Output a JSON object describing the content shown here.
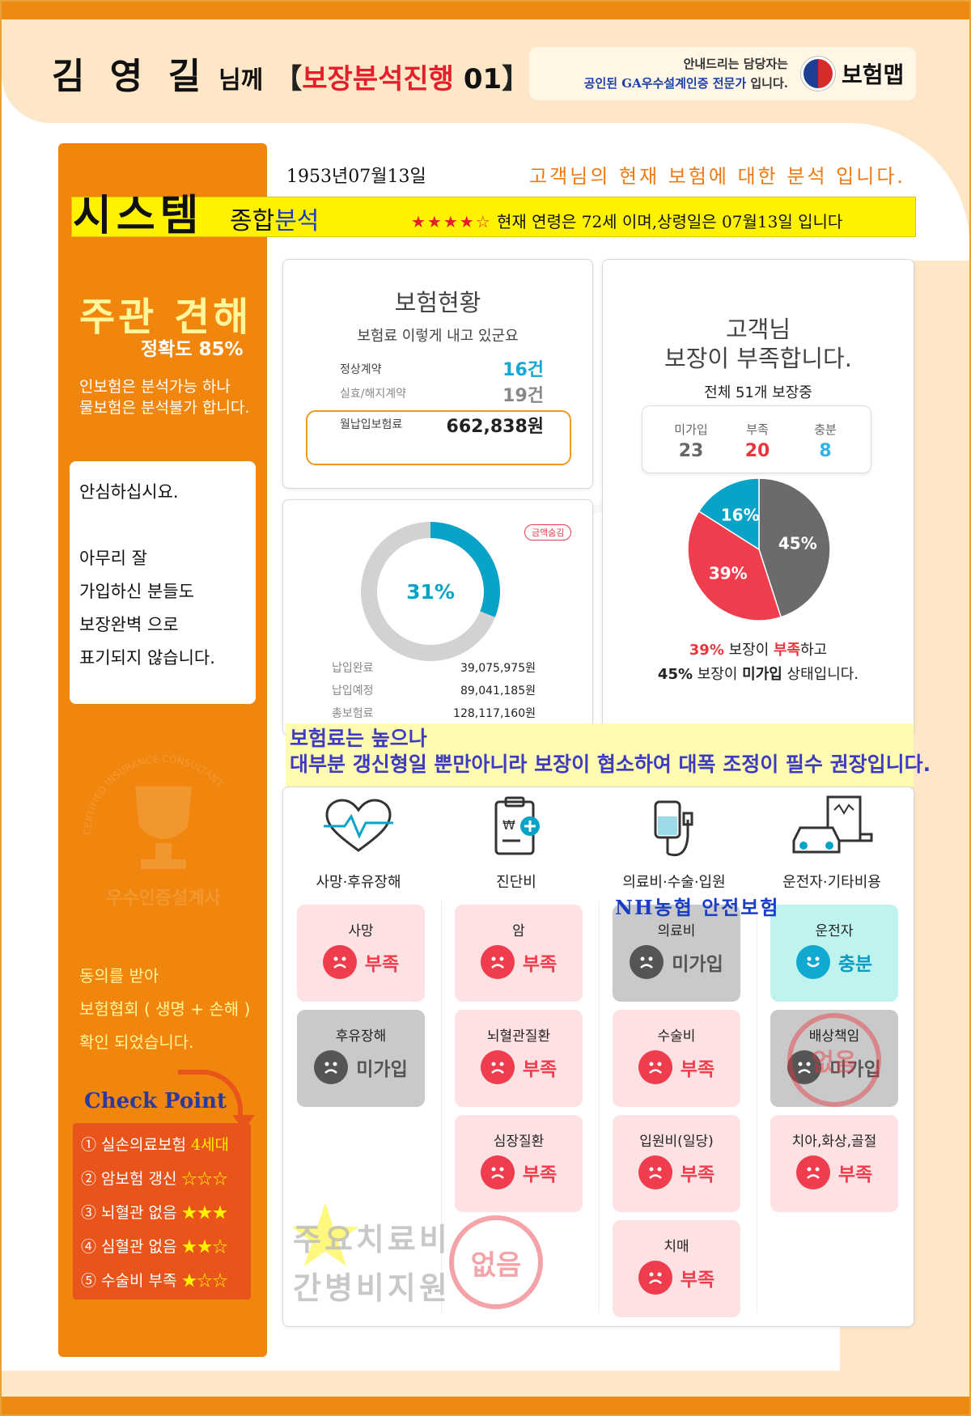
{
  "header": {
    "name": "김 영 길",
    "honorific": "님께",
    "bracket_open": "【",
    "bracket_title": "보장분석진행",
    "bracket_num": "01",
    "bracket_close": "】",
    "guide_line1": "안내드리는 담당자는",
    "guide_line2_blue": "공인된 GA우수설계인증 전문가",
    "guide_line2_rest": "입니다.",
    "logo_text": "보험맵",
    "logo_icon": "taegeuk-logo-icon"
  },
  "dob": "1953년07월13일",
  "analysis_note": "고객님의 현재 보험에 대한 분석 입니다.",
  "system": {
    "title": "시스템",
    "sub_black": "종합",
    "sub_blue": "분석",
    "stars": "★★★★☆",
    "age_text": "현재 연령은 72세 이며,상령일은 07월13일 입니다"
  },
  "sidebar": {
    "opinion_title": "주관 견해",
    "accuracy": "정확도 85%",
    "opinion_line1": "인보험은 분석가능 하나",
    "opinion_line2": "물보험은 분석불가 합니다.",
    "reassure": [
      "안심하십시요.",
      "",
      "아무리 잘",
      "가입하신 분들도",
      "보장완벽 으로",
      "표기되지 않습니다."
    ],
    "cert_ring_text": "CERTIFIED INSURANCE CONSULTANT",
    "cert_label": "우수인증설계사",
    "consent": [
      "동의를 받아",
      "보험협회 ( 생명 + 손해 )",
      "확인 되었습니다."
    ],
    "checkpoint_title": "Check Point",
    "checklist": [
      {
        "text": "① 실손의료보험",
        "mark": "4세대"
      },
      {
        "text": "② 암보험 갱신",
        "mark": "☆☆☆"
      },
      {
        "text": "③ 뇌혈관 없음",
        "mark": "★★★"
      },
      {
        "text": "④ 심혈관 없음",
        "mark": "★★☆"
      },
      {
        "text": "⑤ 수술비 부족",
        "mark": "★☆☆"
      }
    ]
  },
  "insurance_status": {
    "title": "보험현황",
    "subtitle": "보험료 이렇게 내고 있군요",
    "normal_label": "정상계약",
    "normal_value": "16건",
    "lapsed_label": "실효/해지계약",
    "lapsed_value": "19건",
    "monthly_label": "월납입보험료",
    "monthly_value": "662,838원"
  },
  "payment": {
    "percent_label": "31%",
    "percent": 31,
    "hide_badge": "금액숨김",
    "paid_label": "납입완료",
    "paid_value": "39,075,975원",
    "due_label": "납입예정",
    "due_value": "89,041,185원",
    "total_label": "총보험료",
    "total_value": "128,117,160원"
  },
  "shortage": {
    "title_line1": "고객님",
    "title_line2": "보장이 부족합니다.",
    "total": "전체 51개 보장중",
    "stats": [
      {
        "label": "미가입",
        "value": "23",
        "color": "#666666"
      },
      {
        "label": "부족",
        "value": "20",
        "color": "#e8363f"
      },
      {
        "label": "충분",
        "value": "8",
        "color": "#34b3e0"
      }
    ],
    "pie": [
      {
        "label": "45%",
        "value": 45,
        "color": "#6b6b6b"
      },
      {
        "label": "39%",
        "value": 39,
        "color": "#ef3d4d"
      },
      {
        "label": "16%",
        "value": 16,
        "color": "#0aa3c8"
      }
    ],
    "note1_a": "39%",
    "note1_b": " 보장이 ",
    "note1_c": "부족",
    "note1_d": "하고",
    "note2_a": "45%",
    "note2_b": " 보장이 ",
    "note2_c": "미가입",
    "note2_d": " 상태입니다."
  },
  "banner": {
    "line1": "보험료는 높으나",
    "line2": "대부분 갱신형일 뿐만아니라 보장이 협소하여 대폭 조정이 필수 권장입니다."
  },
  "categories": [
    {
      "label": "사망·후유장해",
      "icon": "heartbeat-icon"
    },
    {
      "label": "진단비",
      "icon": "diagnosis-clipboard-icon"
    },
    {
      "label": "의료비·수술·입원",
      "icon": "iv-drip-icon"
    },
    {
      "label": "운전자·기타비용",
      "icon": "car-bill-icon"
    }
  ],
  "tiles": [
    {
      "col": 0,
      "row": 0,
      "title": "사망",
      "status": "부족",
      "kind": "short"
    },
    {
      "col": 0,
      "row": 1,
      "title": "후유장해",
      "status": "미가입",
      "kind": "none"
    },
    {
      "col": 1,
      "row": 0,
      "title": "암",
      "status": "부족",
      "kind": "short"
    },
    {
      "col": 1,
      "row": 1,
      "title": "뇌혈관질환",
      "status": "부족",
      "kind": "short"
    },
    {
      "col": 1,
      "row": 2,
      "title": "심장질환",
      "status": "부족",
      "kind": "short"
    },
    {
      "col": 2,
      "row": 0,
      "title": "의료비",
      "status": "미가입",
      "kind": "none"
    },
    {
      "col": 2,
      "row": 1,
      "title": "수술비",
      "status": "부족",
      "kind": "short"
    },
    {
      "col": 2,
      "row": 2,
      "title": "입원비(일당)",
      "status": "부족",
      "kind": "short"
    },
    {
      "col": 2,
      "row": 3,
      "title": "치매",
      "status": "부족",
      "kind": "short"
    },
    {
      "col": 3,
      "row": 0,
      "title": "운전자",
      "status": "충분",
      "kind": "ok"
    },
    {
      "col": 3,
      "row": 1,
      "title": "배상책임",
      "status": "미가입",
      "kind": "none"
    },
    {
      "col": 3,
      "row": 2,
      "title": "치아,화상,골절",
      "status": "부족",
      "kind": "short"
    }
  ],
  "nh_label": "NH농협 안전보험",
  "liability_stamp": "없음",
  "major": {
    "line1": "주요치료비",
    "line2": "간병비지원",
    "stamp": "없음"
  },
  "colors": {
    "orange": "#f0860e",
    "cream": "#fde7c7",
    "short_red": "#e8363f",
    "blue_accent": "#0aa3c8"
  }
}
